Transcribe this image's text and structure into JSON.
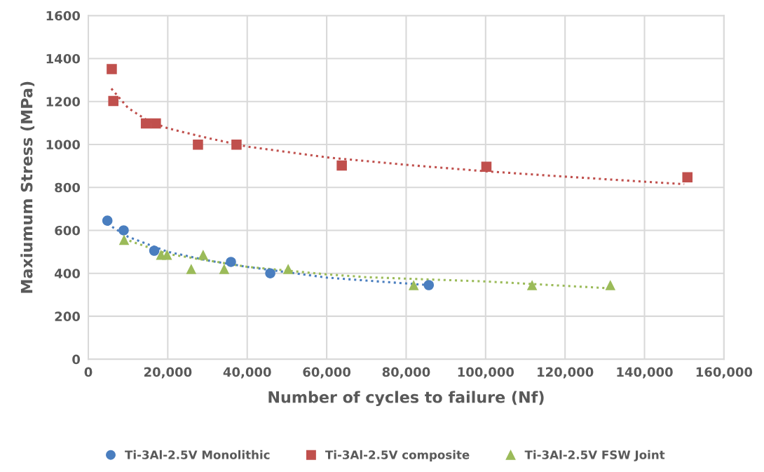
{
  "chart_data": {
    "type": "scatter",
    "xlabel": "Number of cycles to failure (Nf)",
    "ylabel": "Maxiumum Stress (MPa)",
    "xlim": [
      0,
      160000
    ],
    "ylim": [
      0,
      1600
    ],
    "xticks": [
      0,
      {
        "value": 20000,
        "label": "20,000"
      },
      {
        "value": 40000,
        "label": "40,000"
      },
      {
        "value": 60000,
        "label": "60,000"
      },
      {
        "value": 80000,
        "label": "80,000"
      },
      {
        "value": 100000,
        "label": "100,000"
      },
      {
        "value": 120000,
        "label": "120,000"
      },
      {
        "value": 140000,
        "label": "140,000"
      },
      {
        "value": 160000,
        "label": "160,000"
      }
    ],
    "yticks": [
      0,
      200,
      400,
      600,
      800,
      1000,
      1200,
      1400,
      1600
    ],
    "grid": true,
    "legend": "bottom",
    "series": [
      {
        "name": "Ti-3Al-2.5V Monolithic",
        "color": "#4a7ebf",
        "marker": "circle",
        "x": [
          4800,
          8900,
          16600,
          35900,
          45800,
          85700
        ],
        "values": [
          645,
          600,
          505,
          453,
          400,
          345
        ]
      },
      {
        "name": "Ti-3Al-2.5V composite",
        "color": "#c0504d",
        "marker": "square",
        "x": [
          5900,
          6300,
          14500,
          17000,
          27600,
          37300,
          63800,
          100200,
          150800
        ],
        "values": [
          1351,
          1202,
          1098,
          1098,
          999,
          999,
          902,
          896,
          847
        ]
      },
      {
        "name": "Ti-3Al-2.5V FSW Joint",
        "color": "#9bbb59",
        "marker": "triangle",
        "x": [
          9000,
          18300,
          19800,
          25900,
          28900,
          34200,
          50300,
          81900,
          111700,
          131400
        ],
        "values": [
          556,
          486,
          486,
          420,
          486,
          420,
          420,
          345,
          345,
          345
        ]
      },
      {
        "type": "line",
        "color": "#c0504d",
        "line_style": "dotted",
        "x": [
          5800,
          10000,
          15000,
          20000,
          30000,
          40000,
          60000,
          80000,
          100000,
          120000,
          150000
        ],
        "values": [
          1260,
          1170,
          1110,
          1075,
          1030,
          990,
          940,
          905,
          875,
          850,
          815
        ]
      },
      {
        "type": "line",
        "color": "#4a7ebf",
        "line_style": "dotted",
        "x": [
          4800,
          10000,
          20000,
          30000,
          40000,
          60000,
          70000,
          85700
        ],
        "values": [
          630,
          570,
          500,
          460,
          430,
          380,
          366,
          345
        ]
      },
      {
        "type": "line",
        "color": "#9bbb59",
        "line_style": "dotted",
        "x": [
          9000,
          20000,
          40000,
          60000,
          70000,
          80000,
          100000,
          131400
        ],
        "values": [
          560,
          490,
          430,
          395,
          382,
          375,
          362,
          330
        ]
      }
    ]
  }
}
